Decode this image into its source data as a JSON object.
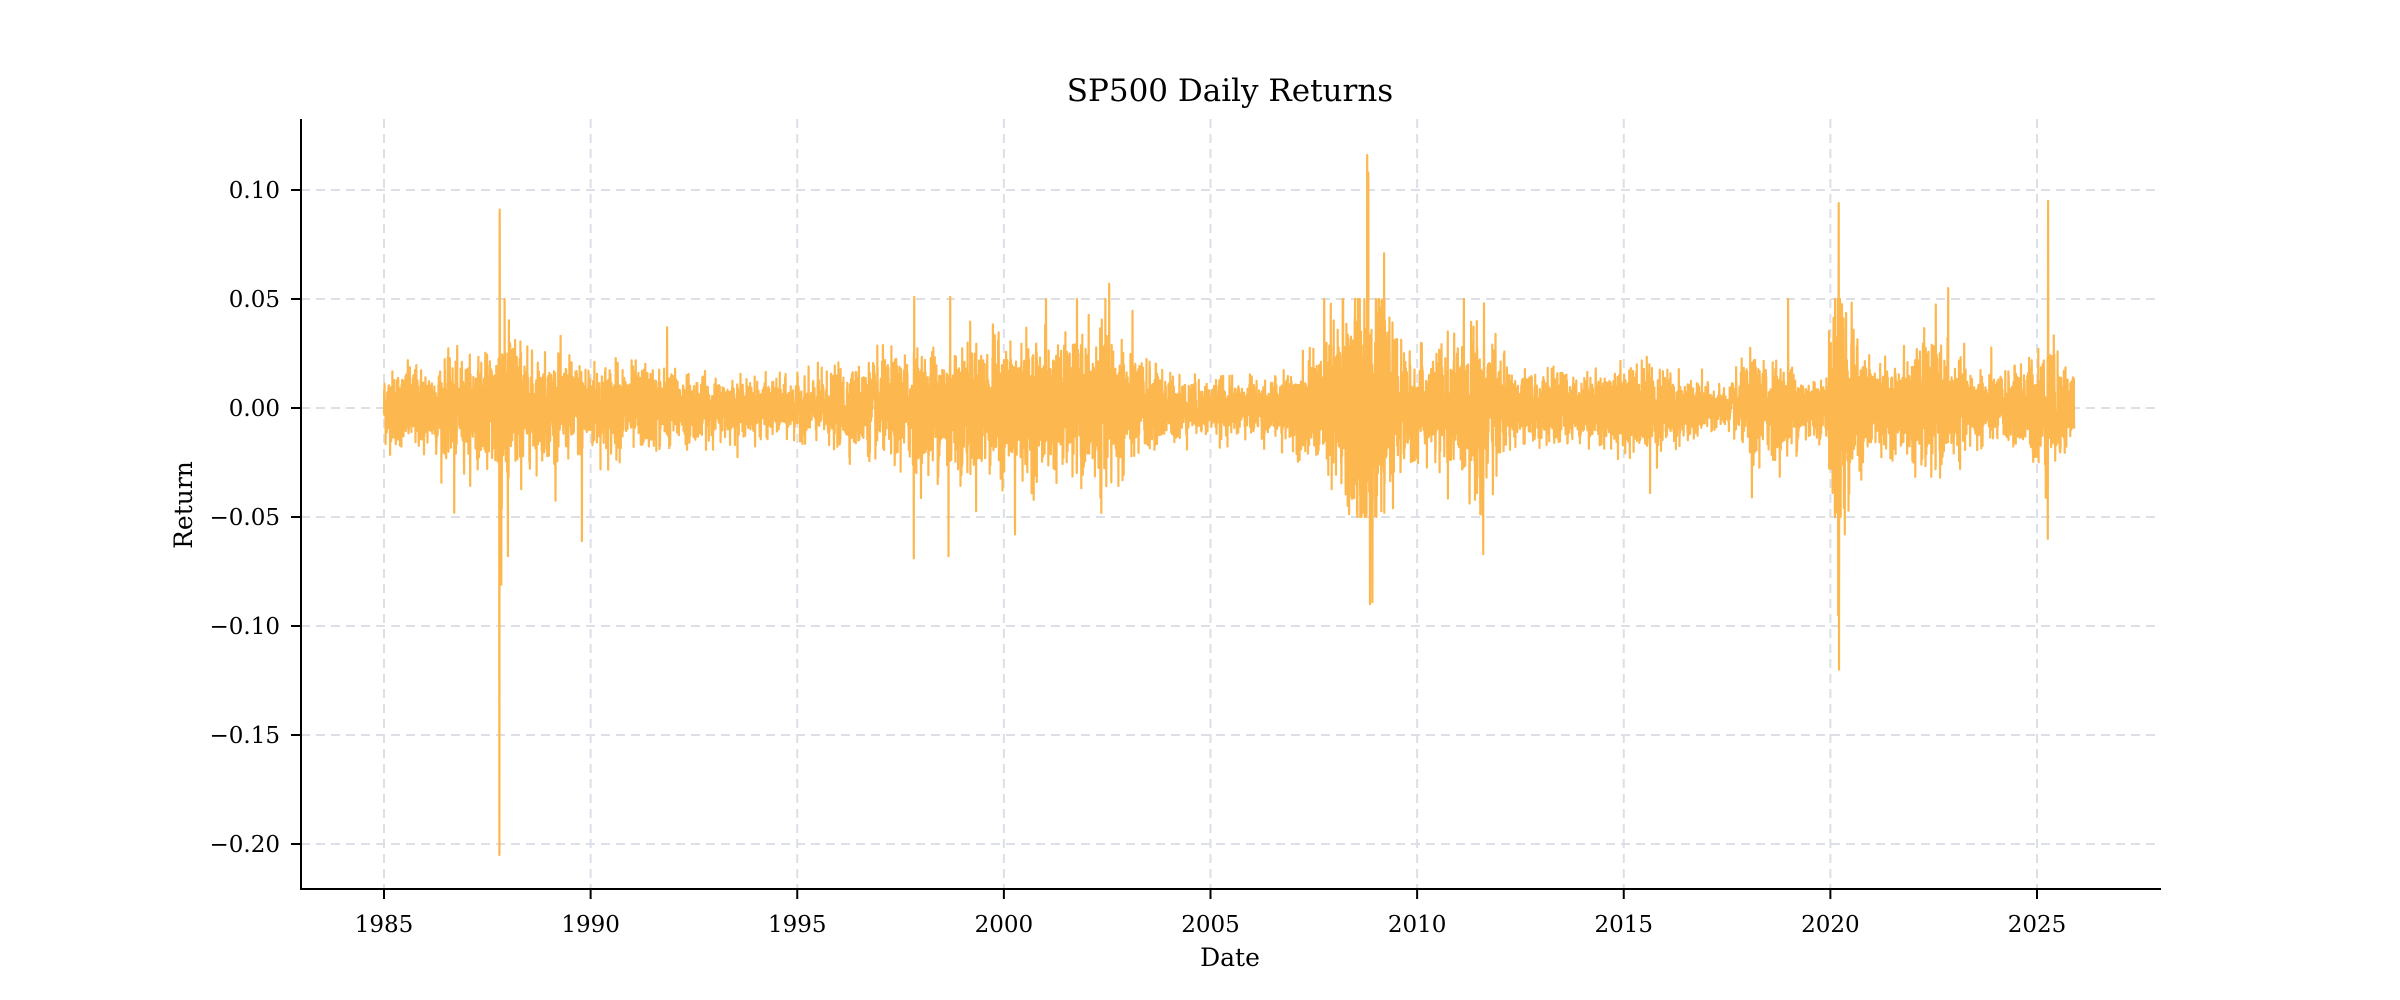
{
  "chart_data": {
    "type": "line",
    "title": "SP500 Daily Returns",
    "xlabel": "Date",
    "ylabel": "Return",
    "xlim": [
      1983.0,
      2028.0
    ],
    "ylim": [
      -0.222,
      0.133
    ],
    "x_ticks": [
      1985,
      1990,
      1995,
      2000,
      2005,
      2010,
      2015,
      2020,
      2025
    ],
    "x_tick_labels": [
      "1985",
      "1990",
      "1995",
      "2000",
      "2005",
      "2010",
      "2015",
      "2020",
      "2025"
    ],
    "y_ticks": [
      0.1,
      0.05,
      0.0,
      -0.05,
      -0.1,
      -0.15,
      -0.2
    ],
    "y_tick_labels": [
      "0.10",
      "0.05",
      "0.00",
      "−0.05",
      "−0.10",
      "−0.15",
      "−0.20"
    ],
    "grid": true,
    "legend": null,
    "series": [
      {
        "name": "SP500 daily return",
        "color": "#FDB74F",
        "x_range": [
          1985.0,
          2025.9
        ],
        "volatility_regimes": [
          {
            "x": 1985.0,
            "sigma": 0.008
          },
          {
            "x": 1986.5,
            "sigma": 0.01
          },
          {
            "x": 1987.6,
            "sigma": 0.011
          },
          {
            "x": 1987.85,
            "sigma": 0.022
          },
          {
            "x": 1988.5,
            "sigma": 0.011
          },
          {
            "x": 1990.0,
            "sigma": 0.01
          },
          {
            "x": 1991.5,
            "sigma": 0.009
          },
          {
            "x": 1993.0,
            "sigma": 0.006
          },
          {
            "x": 1995.0,
            "sigma": 0.006
          },
          {
            "x": 1996.5,
            "sigma": 0.009
          },
          {
            "x": 1997.8,
            "sigma": 0.012
          },
          {
            "x": 1998.7,
            "sigma": 0.014
          },
          {
            "x": 2000.0,
            "sigma": 0.014
          },
          {
            "x": 2001.7,
            "sigma": 0.014
          },
          {
            "x": 2002.6,
            "sigma": 0.017
          },
          {
            "x": 2003.5,
            "sigma": 0.009
          },
          {
            "x": 2004.5,
            "sigma": 0.006
          },
          {
            "x": 2006.5,
            "sigma": 0.006
          },
          {
            "x": 2007.5,
            "sigma": 0.011
          },
          {
            "x": 2008.7,
            "sigma": 0.033
          },
          {
            "x": 2009.3,
            "sigma": 0.018
          },
          {
            "x": 2009.9,
            "sigma": 0.01
          },
          {
            "x": 2010.4,
            "sigma": 0.012
          },
          {
            "x": 2011.6,
            "sigma": 0.018
          },
          {
            "x": 2012.2,
            "sigma": 0.008
          },
          {
            "x": 2014.0,
            "sigma": 0.007
          },
          {
            "x": 2015.6,
            "sigma": 0.01
          },
          {
            "x": 2016.5,
            "sigma": 0.007
          },
          {
            "x": 2017.5,
            "sigma": 0.004
          },
          {
            "x": 2018.1,
            "sigma": 0.011
          },
          {
            "x": 2019.0,
            "sigma": 0.009
          },
          {
            "x": 2019.9,
            "sigma": 0.006
          },
          {
            "x": 2020.2,
            "sigma": 0.035
          },
          {
            "x": 2020.6,
            "sigma": 0.013
          },
          {
            "x": 2021.5,
            "sigma": 0.008
          },
          {
            "x": 2022.3,
            "sigma": 0.015
          },
          {
            "x": 2023.2,
            "sigma": 0.009
          },
          {
            "x": 2024.3,
            "sigma": 0.007
          },
          {
            "x": 2025.3,
            "sigma": 0.014
          },
          {
            "x": 2025.9,
            "sigma": 0.008
          }
        ],
        "notable_points": [
          {
            "x": 1987.8,
            "y": 0.091
          },
          {
            "x": 1987.79,
            "y": -0.205
          },
          {
            "x": 1987.84,
            "y": -0.081
          },
          {
            "x": 1988.0,
            "y": -0.068
          },
          {
            "x": 1986.7,
            "y": -0.048
          },
          {
            "x": 1989.79,
            "y": -0.061
          },
          {
            "x": 1991.85,
            "y": 0.037
          },
          {
            "x": 1997.82,
            "y": -0.069
          },
          {
            "x": 1997.83,
            "y": 0.051
          },
          {
            "x": 1998.66,
            "y": -0.068
          },
          {
            "x": 1998.7,
            "y": 0.051
          },
          {
            "x": 2000.27,
            "y": -0.058
          },
          {
            "x": 2001.02,
            "y": 0.05
          },
          {
            "x": 2002.55,
            "y": 0.057
          },
          {
            "x": 2008.79,
            "y": 0.116
          },
          {
            "x": 2008.82,
            "y": 0.108
          },
          {
            "x": 2008.86,
            "y": -0.09
          },
          {
            "x": 2008.92,
            "y": -0.089
          },
          {
            "x": 2009.2,
            "y": 0.071
          },
          {
            "x": 2011.6,
            "y": -0.067
          },
          {
            "x": 2011.62,
            "y": 0.048
          },
          {
            "x": 2015.64,
            "y": -0.039
          },
          {
            "x": 2018.1,
            "y": -0.041
          },
          {
            "x": 2018.98,
            "y": 0.05
          },
          {
            "x": 2020.2,
            "y": 0.094
          },
          {
            "x": 2020.21,
            "y": -0.12
          },
          {
            "x": 2020.19,
            "y": -0.095
          },
          {
            "x": 2020.35,
            "y": -0.058
          },
          {
            "x": 2022.85,
            "y": 0.055
          },
          {
            "x": 2025.27,
            "y": 0.095
          },
          {
            "x": 2025.26,
            "y": -0.06
          }
        ],
        "summary": {
          "max": 0.116,
          "max_date_approx": 2008.8,
          "min": -0.205,
          "min_date_approx": 1987.8
        }
      }
    ]
  }
}
